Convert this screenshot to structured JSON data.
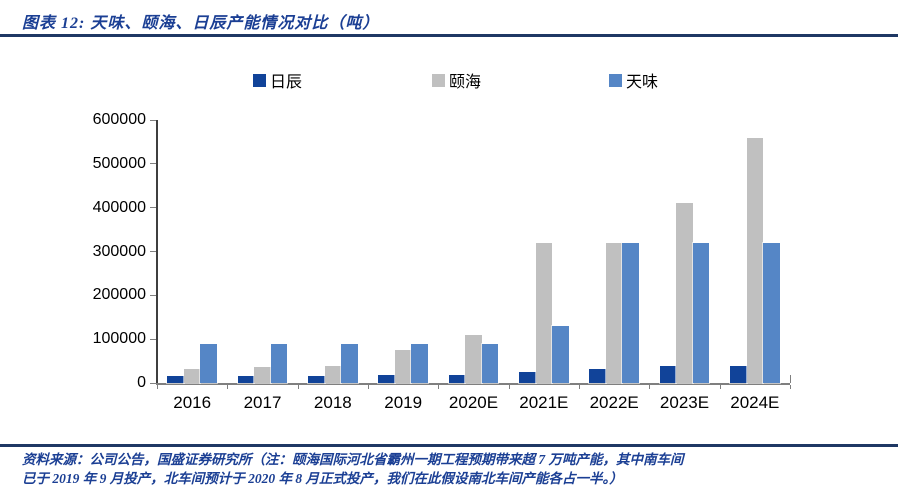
{
  "title": "图表 12: 天味、颐海、日辰产能情况对比（吨）",
  "source_note": {
    "line1": "资料来源：公司公告，国盛证券研究所（注：颐海国际河北省霸州一期工程预期带来超 7 万吨产能，其中南车间",
    "line2": "已于 2019 年 9 月投产，北车间预计于 2020 年 8 月正式投产，我们在此假设南北车间产能各占一半。）"
  },
  "colors": {
    "title_text": "#1B3F94",
    "note_text": "#1B3F94",
    "rule": "#1F3864",
    "axis_line": "#3F3F3F",
    "baseline": "#7F7F7F",
    "tick": "#808080",
    "richen": "#114399",
    "yihai": "#C0C0C0",
    "teway": "#5586C6"
  },
  "chart_data": {
    "type": "bar",
    "title": "图表 12: 天味、颐海、日辰产能情况对比（吨）",
    "unit": "吨",
    "categories": [
      "2016",
      "2017",
      "2018",
      "2019",
      "2020E",
      "2021E",
      "2022E",
      "2023E",
      "2024E"
    ],
    "series": [
      {
        "key": "richen",
        "name": "日辰",
        "values": [
          15000,
          17000,
          17000,
          18000,
          18000,
          24000,
          31000,
          39000,
          39000
        ]
      },
      {
        "key": "yihai",
        "name": "颐海",
        "values": [
          33000,
          37000,
          39000,
          75000,
          110000,
          320000,
          320000,
          410000,
          560000
        ]
      },
      {
        "key": "teway",
        "name": "天味",
        "values": [
          90000,
          90000,
          90000,
          90000,
          90000,
          130000,
          320000,
          320000,
          320000
        ]
      }
    ],
    "ylim": [
      0,
      600000
    ],
    "ytick_step": 100000,
    "ytick_labels": [
      "0",
      "100000",
      "200000",
      "300000",
      "400000",
      "500000",
      "600000"
    ],
    "grid": false,
    "legend_position": "top"
  }
}
